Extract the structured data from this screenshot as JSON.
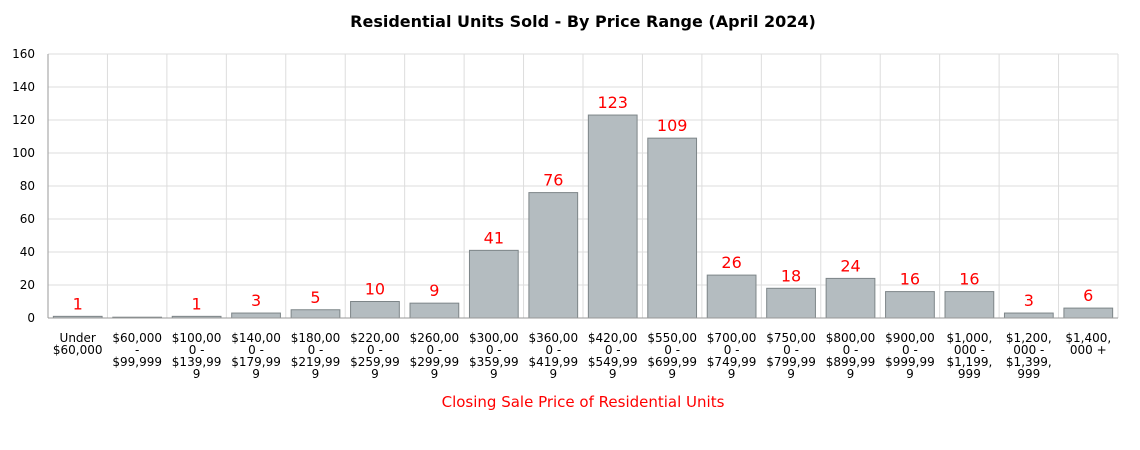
{
  "chart_data": {
    "type": "bar",
    "title": "Residential Units Sold - By Price Range (April 2024)",
    "xlabel": "Closing Sale Price of Residential Units",
    "ylabel": "",
    "ylim": [
      0,
      160
    ],
    "yticks": [
      0,
      20,
      40,
      60,
      80,
      100,
      120,
      140,
      160
    ],
    "grid": true,
    "categories": [
      [
        "Under",
        "$60,000"
      ],
      [
        "$60,000",
        "-",
        "$99,999"
      ],
      [
        "$100,00",
        "0 -",
        "$139,99",
        "9"
      ],
      [
        "$140,00",
        "0 -",
        "$179,99",
        "9"
      ],
      [
        "$180,00",
        "0 -",
        "$219,99",
        "9"
      ],
      [
        "$220,00",
        "0 -",
        "$259,99",
        "9"
      ],
      [
        "$260,00",
        "0 -",
        "$299,99",
        "9"
      ],
      [
        "$300,00",
        "0 -",
        "$359,99",
        "9"
      ],
      [
        "$360,00",
        "0 -",
        "$419,99",
        "9"
      ],
      [
        "$420,00",
        "0 -",
        "$549,99",
        "9"
      ],
      [
        "$550,00",
        "0 -",
        "$699,99",
        "9"
      ],
      [
        "$700,00",
        "0 -",
        "$749,99",
        "9"
      ],
      [
        "$750,00",
        "0 -",
        "$799,99",
        "9"
      ],
      [
        "$800,00",
        "0 -",
        "$899,99",
        "9"
      ],
      [
        "$900,00",
        "0 -",
        "$999,99",
        "9"
      ],
      [
        "$1,000,",
        "000 -",
        "$1,199,",
        "999"
      ],
      [
        "$1,200,",
        "000 -",
        "$1,399,",
        "999"
      ],
      [
        "$1,400,",
        "000 +"
      ]
    ],
    "values": [
      1,
      0,
      1,
      3,
      5,
      10,
      9,
      41,
      76,
      123,
      109,
      26,
      18,
      24,
      16,
      16,
      3,
      6
    ],
    "data_labels": [
      "1",
      "",
      "1",
      "3",
      "5",
      "10",
      "9",
      "41",
      "76",
      "123",
      "109",
      "26",
      "18",
      "24",
      "16",
      "16",
      "3",
      "6"
    ],
    "colors": {
      "bar_fill": "#b4bcc0",
      "bar_stroke": "#7d8588",
      "data_label": "#ff0000",
      "xlabel": "#ff0000",
      "grid": "#dddddd",
      "axis": "#999999"
    }
  }
}
